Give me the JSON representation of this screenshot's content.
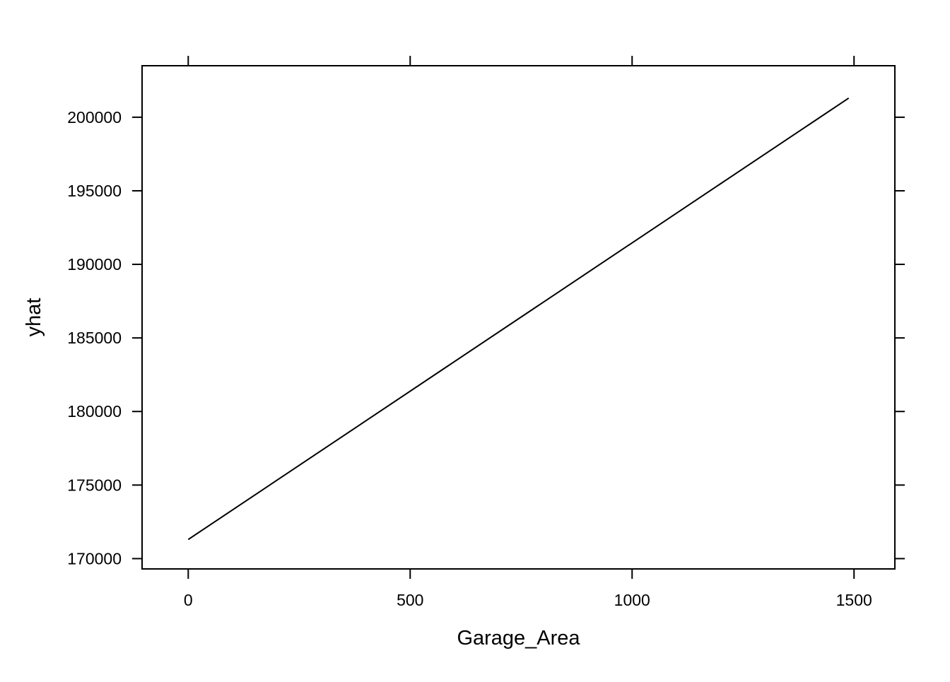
{
  "chart_data": {
    "type": "line",
    "title": "",
    "xlabel": "Garage_Area",
    "ylabel": "yhat",
    "xlim": [
      -104,
      1592
    ],
    "ylim": [
      169300,
      203500
    ],
    "x_ticks": [
      0,
      500,
      1000,
      1500
    ],
    "x_tick_labels": [
      "0",
      "500",
      "1000",
      "1500"
    ],
    "y_ticks": [
      170000,
      175000,
      180000,
      185000,
      190000,
      195000,
      200000
    ],
    "y_tick_labels": [
      "170000",
      "175000",
      "180000",
      "185000",
      "190000",
      "195000",
      "200000"
    ],
    "grid": false,
    "legend": "none",
    "series": [
      {
        "color": "#000000",
        "x": [
          0,
          1488
        ],
        "y": [
          171300,
          201300
        ]
      }
    ]
  }
}
